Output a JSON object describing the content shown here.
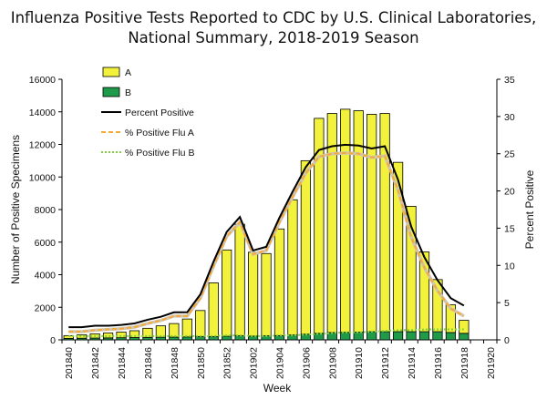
{
  "chart_data": {
    "type": "bar",
    "title_line1": "Influenza Positive Tests Reported to CDC by U.S. Clinical Laboratories,",
    "title_line2": "National Summary, 2018-2019 Season",
    "xlabel": "Week",
    "ylabel_left": "Number of Positive Specimens",
    "ylabel_right": "Percent Positive",
    "ylim_left": [
      0,
      16000
    ],
    "ylim_right": [
      0,
      35
    ],
    "yticks_left": [
      "0",
      "2000",
      "4000",
      "6000",
      "8000",
      "10000",
      "12000",
      "14000",
      "16000"
    ],
    "yticks_right": [
      "0",
      "5",
      "10",
      "15",
      "20",
      "25",
      "30",
      "35"
    ],
    "x_tick_labels": [
      "201840",
      "201842",
      "201844",
      "201846",
      "201848",
      "201850",
      "201852",
      "201902",
      "201904",
      "201906",
      "201908",
      "201910",
      "201912",
      "201914",
      "201916",
      "201918",
      "201920"
    ],
    "stacked": true,
    "legend_position": "top-left",
    "legend": [
      {
        "label": "A",
        "kind": "box",
        "color": "#f2f23c"
      },
      {
        "label": "B",
        "kind": "box",
        "color": "#1f9a48"
      },
      {
        "label": "Percent Positive",
        "kind": "line",
        "color": "#000000"
      },
      {
        "label": "% Positive Flu A",
        "kind": "dash",
        "color": "#f7a935"
      },
      {
        "label": "% Positive Flu B",
        "kind": "dot",
        "color": "#7ed03c"
      }
    ],
    "categories": [
      "201840",
      "201841",
      "201842",
      "201843",
      "201844",
      "201845",
      "201846",
      "201847",
      "201848",
      "201849",
      "201850",
      "201851",
      "201852",
      "201901",
      "201902",
      "201903",
      "201904",
      "201905",
      "201906",
      "201907",
      "201908",
      "201909",
      "201910",
      "201911",
      "201912",
      "201913",
      "201914",
      "201915",
      "201916",
      "201917",
      "201918"
    ],
    "series": [
      {
        "name": "A",
        "axis": "left",
        "color": "#f2f23c",
        "values": [
          170,
          210,
          260,
          300,
          350,
          420,
          560,
          700,
          830,
          1100,
          1600,
          3300,
          5300,
          6850,
          5150,
          5050,
          6550,
          8300,
          10650,
          13200,
          13450,
          13700,
          13600,
          13350,
          13400,
          10400,
          7700,
          4900,
          3200,
          1700,
          800
        ]
      },
      {
        "name": "B",
        "axis": "left",
        "color": "#1f9a48",
        "values": [
          90,
          100,
          110,
          120,
          130,
          140,
          150,
          160,
          170,
          180,
          200,
          200,
          220,
          250,
          230,
          250,
          260,
          300,
          350,
          400,
          450,
          460,
          470,
          500,
          500,
          500,
          500,
          500,
          500,
          450,
          400
        ]
      },
      {
        "name": "Percent Positive",
        "axis": "right",
        "style": "solid",
        "color": "#000000",
        "values": [
          1.7,
          1.7,
          1.9,
          1.9,
          2.0,
          2.2,
          2.7,
          3.1,
          3.7,
          3.7,
          6.1,
          10.5,
          14.5,
          16.5,
          12.0,
          12.5,
          16.4,
          19.9,
          23.2,
          25.5,
          26.0,
          26.2,
          26.1,
          25.7,
          26.0,
          21.5,
          15.2,
          11.1,
          8.0,
          5.6,
          4.6
        ]
      },
      {
        "name": "% Positive Flu A",
        "axis": "right",
        "style": "dash",
        "color": "#f7a935",
        "values": [
          1.1,
          1.1,
          1.3,
          1.4,
          1.5,
          1.7,
          2.2,
          2.6,
          3.2,
          3.2,
          5.6,
          9.9,
          13.9,
          15.8,
          11.5,
          12.0,
          15.8,
          19.2,
          22.4,
          24.6,
          25.0,
          25.1,
          25.0,
          24.5,
          24.7,
          20.1,
          13.8,
          9.7,
          6.6,
          4.2,
          3.2
        ]
      },
      {
        "name": "% Positive Flu B",
        "axis": "right",
        "style": "dot",
        "color": "#7ed03c",
        "values": [
          0.5,
          0.5,
          0.5,
          0.5,
          0.5,
          0.5,
          0.5,
          0.5,
          0.5,
          0.5,
          0.5,
          0.5,
          0.6,
          0.6,
          0.5,
          0.5,
          0.6,
          0.6,
          0.7,
          0.8,
          0.9,
          1.0,
          1.0,
          1.1,
          1.2,
          1.3,
          1.3,
          1.4,
          1.4,
          1.4,
          1.4
        ]
      }
    ],
    "grid": false
  }
}
